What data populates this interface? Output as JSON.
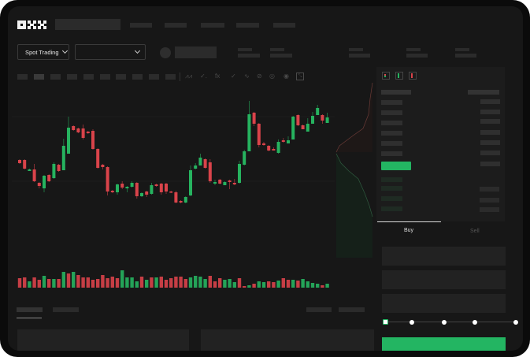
{
  "header": {
    "logo": "OKX",
    "market_dropdown": "Spot Trading"
  },
  "order_form": {
    "tabs": [
      {
        "label": "Buy",
        "active": true
      },
      {
        "label": "Sell",
        "active": false
      }
    ],
    "slider_percent": 0
  },
  "colors": {
    "up": "#26b35f",
    "down": "#d9434a",
    "background": "#171717",
    "panel": "#1c1c1c",
    "buy_button": "#23b562"
  },
  "icons": [
    "candle-type-icon",
    "indicator-icon",
    "drawing-icon",
    "ruler-icon",
    "camera-icon",
    "settings-icon",
    "fullscreen-icon",
    "orderbook-both-icon",
    "orderbook-bids-icon",
    "orderbook-asks-icon"
  ],
  "chart_data": {
    "type": "candlestick",
    "title": "",
    "xlabel": "",
    "ylabel": "",
    "grid": true,
    "candles": [
      [
        97,
        98,
        92,
        93
      ],
      [
        97,
        98,
        85,
        86
      ],
      [
        83,
        86,
        83,
        85
      ],
      [
        85,
        92,
        69,
        70
      ],
      [
        68,
        69,
        61,
        64
      ],
      [
        61,
        78,
        56,
        77
      ],
      [
        78,
        79,
        69,
        70
      ],
      [
        74,
        94,
        73,
        92
      ],
      [
        91,
        92,
        82,
        83
      ],
      [
        84,
        124,
        84,
        115
      ],
      [
        105,
        152,
        105,
        138
      ],
      [
        140,
        141,
        134,
        135
      ],
      [
        137,
        138,
        131,
        132
      ],
      [
        137,
        142,
        123,
        125
      ],
      [
        133,
        134,
        130,
        131
      ],
      [
        134,
        136,
        110,
        111
      ],
      [
        111,
        112,
        86,
        87
      ],
      [
        91,
        92,
        85,
        88
      ],
      [
        88,
        89,
        52,
        57
      ],
      [
        58,
        59,
        55,
        56
      ],
      [
        56,
        67,
        53,
        66
      ],
      [
        67,
        70,
        60,
        62
      ],
      [
        61,
        64,
        56,
        63
      ],
      [
        63,
        70,
        62,
        68
      ],
      [
        68,
        69,
        48,
        51
      ],
      [
        51,
        56,
        50,
        55
      ],
      [
        57,
        58,
        50,
        53
      ],
      [
        54,
        68,
        53,
        65
      ],
      [
        66,
        67,
        63,
        64
      ],
      [
        67,
        68,
        53,
        56
      ],
      [
        67,
        68,
        54,
        57
      ],
      [
        57,
        58,
        55,
        56
      ],
      [
        56,
        58,
        42,
        43
      ],
      [
        45,
        46,
        42,
        43
      ],
      [
        43,
        51,
        42,
        50
      ],
      [
        52,
        90,
        51,
        84
      ],
      [
        86,
        93,
        85,
        90
      ],
      [
        90,
        105,
        90,
        100
      ],
      [
        98,
        99,
        86,
        87
      ],
      [
        94,
        98,
        68,
        70
      ],
      [
        67,
        72,
        65,
        69
      ],
      [
        72,
        73,
        66,
        67
      ],
      [
        65,
        70,
        65,
        69
      ],
      [
        71,
        72,
        60,
        69
      ],
      [
        68,
        73,
        65,
        66
      ],
      [
        68,
        96,
        67,
        92
      ],
      [
        91,
        110,
        90,
        108
      ],
      [
        108,
        172,
        108,
        155
      ],
      [
        157,
        158,
        140,
        143
      ],
      [
        143,
        144,
        113,
        116
      ],
      [
        118,
        120,
        115,
        116
      ],
      [
        115,
        116,
        108,
        109
      ],
      [
        111,
        113,
        109,
        109
      ],
      [
        106,
        123,
        105,
        120
      ],
      [
        122,
        125,
        119,
        120
      ],
      [
        118,
        127,
        118,
        122
      ],
      [
        123,
        153,
        123,
        152
      ],
      [
        154,
        155,
        140,
        141
      ],
      [
        141,
        142,
        136,
        136
      ],
      [
        133,
        150,
        133,
        143
      ],
      [
        143,
        158,
        143,
        153
      ],
      [
        154,
        167,
        154,
        163
      ],
      [
        154,
        155,
        143,
        147
      ],
      [
        144,
        157,
        144,
        151
      ]
    ],
    "candle_fields": [
      "open",
      "high",
      "low",
      "close"
    ],
    "volume": [
      {
        "v": 12,
        "d": "down"
      },
      {
        "v": 13,
        "d": "down"
      },
      {
        "v": 8,
        "d": "up"
      },
      {
        "v": 13,
        "d": "down"
      },
      {
        "v": 10,
        "d": "down"
      },
      {
        "v": 15,
        "d": "up"
      },
      {
        "v": 11,
        "d": "down"
      },
      {
        "v": 11,
        "d": "up"
      },
      {
        "v": 11,
        "d": "down"
      },
      {
        "v": 20,
        "d": "up"
      },
      {
        "v": 18,
        "d": "down"
      },
      {
        "v": 20,
        "d": "up"
      },
      {
        "v": 16,
        "d": "down"
      },
      {
        "v": 13,
        "d": "down"
      },
      {
        "v": 13,
        "d": "down"
      },
      {
        "v": 10,
        "d": "down"
      },
      {
        "v": 11,
        "d": "down"
      },
      {
        "v": 16,
        "d": "down"
      },
      {
        "v": 12,
        "d": "down"
      },
      {
        "v": 14,
        "d": "down"
      },
      {
        "v": 12,
        "d": "down"
      },
      {
        "v": 22,
        "d": "up"
      },
      {
        "v": 13,
        "d": "up"
      },
      {
        "v": 13,
        "d": "up"
      },
      {
        "v": 8,
        "d": "up"
      },
      {
        "v": 14,
        "d": "down"
      },
      {
        "v": 10,
        "d": "up"
      },
      {
        "v": 13,
        "d": "down"
      },
      {
        "v": 13,
        "d": "up"
      },
      {
        "v": 14,
        "d": "down"
      },
      {
        "v": 10,
        "d": "down"
      },
      {
        "v": 12,
        "d": "down"
      },
      {
        "v": 14,
        "d": "down"
      },
      {
        "v": 14,
        "d": "down"
      },
      {
        "v": 11,
        "d": "down"
      },
      {
        "v": 13,
        "d": "up"
      },
      {
        "v": 15,
        "d": "up"
      },
      {
        "v": 14,
        "d": "up"
      },
      {
        "v": 11,
        "d": "up"
      },
      {
        "v": 15,
        "d": "down"
      },
      {
        "v": 8,
        "d": "down"
      },
      {
        "v": 12,
        "d": "down"
      },
      {
        "v": 10,
        "d": "up"
      },
      {
        "v": 11,
        "d": "up"
      },
      {
        "v": 7,
        "d": "up"
      },
      {
        "v": 12,
        "d": "down"
      },
      {
        "v": 2,
        "d": "down"
      },
      {
        "v": 3,
        "d": "up"
      },
      {
        "v": 5,
        "d": "down"
      },
      {
        "v": 8,
        "d": "up"
      },
      {
        "v": 7,
        "d": "up"
      },
      {
        "v": 8,
        "d": "down"
      },
      {
        "v": 7,
        "d": "down"
      },
      {
        "v": 9,
        "d": "up"
      },
      {
        "v": 12,
        "d": "down"
      },
      {
        "v": 10,
        "d": "down"
      },
      {
        "v": 10,
        "d": "up"
      },
      {
        "v": 9,
        "d": "down"
      },
      {
        "v": 11,
        "d": "up"
      },
      {
        "v": 8,
        "d": "up"
      },
      {
        "v": 6,
        "d": "up"
      },
      {
        "v": 5,
        "d": "up"
      },
      {
        "v": 3,
        "d": "down"
      },
      {
        "v": 5,
        "d": "up"
      }
    ]
  }
}
